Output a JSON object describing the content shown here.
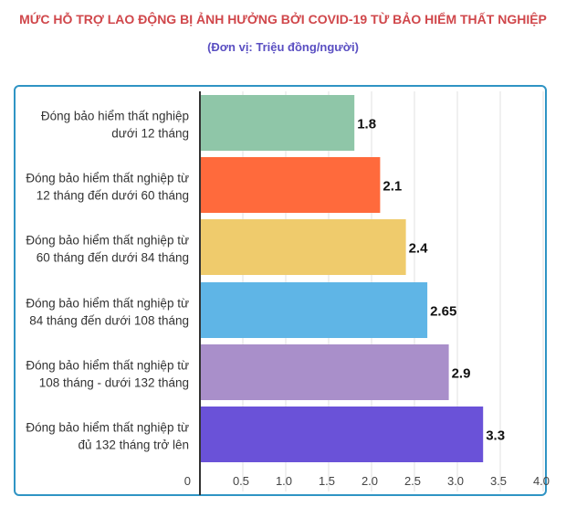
{
  "chart_data": {
    "type": "bar",
    "orientation": "horizontal",
    "title": "MỨC HỖ TRỢ LAO ĐỘNG BỊ ẢNH HƯỞNG BỞI COVID-19 TỪ BẢO HIỂM THẤT NGHIỆP",
    "subtitle": "(Đơn vị: Triệu đồng/người)",
    "xlabel": "",
    "ylabel": "",
    "xlim": [
      0,
      4.0
    ],
    "grid": true,
    "ticks": [
      "0",
      "0.5",
      "1.0",
      "1.5",
      "2.0",
      "2.5",
      "3.0",
      "3.5",
      "4.0"
    ],
    "categories": [
      [
        "Đóng bảo hiểm thất nghiệp",
        "dưới 12 tháng"
      ],
      [
        "Đóng bảo hiểm thất nghiệp từ",
        "12 tháng đến dưới 60 tháng"
      ],
      [
        "Đóng bảo hiểm thất nghiệp từ",
        "60 tháng đến dưới 84 tháng"
      ],
      [
        "Đóng bảo hiểm thất nghiệp từ",
        "84 tháng đến dưới 108 tháng"
      ],
      [
        "Đóng bảo hiểm thất nghiệp từ",
        "108 tháng - dưới 132 tháng"
      ],
      [
        "Đóng bảo hiểm thất nghiệp từ",
        "đủ 132 tháng trở lên"
      ]
    ],
    "values": [
      1.8,
      2.1,
      2.4,
      2.65,
      2.9,
      3.3
    ],
    "value_labels": [
      "1.8",
      "2.1",
      "2.4",
      "2.65",
      "2.9",
      "3.3"
    ],
    "colors": [
      "#8fc6a8",
      "#ff6a3c",
      "#efcb6c",
      "#5fb5e6",
      "#a98fca",
      "#6a52d8"
    ]
  }
}
